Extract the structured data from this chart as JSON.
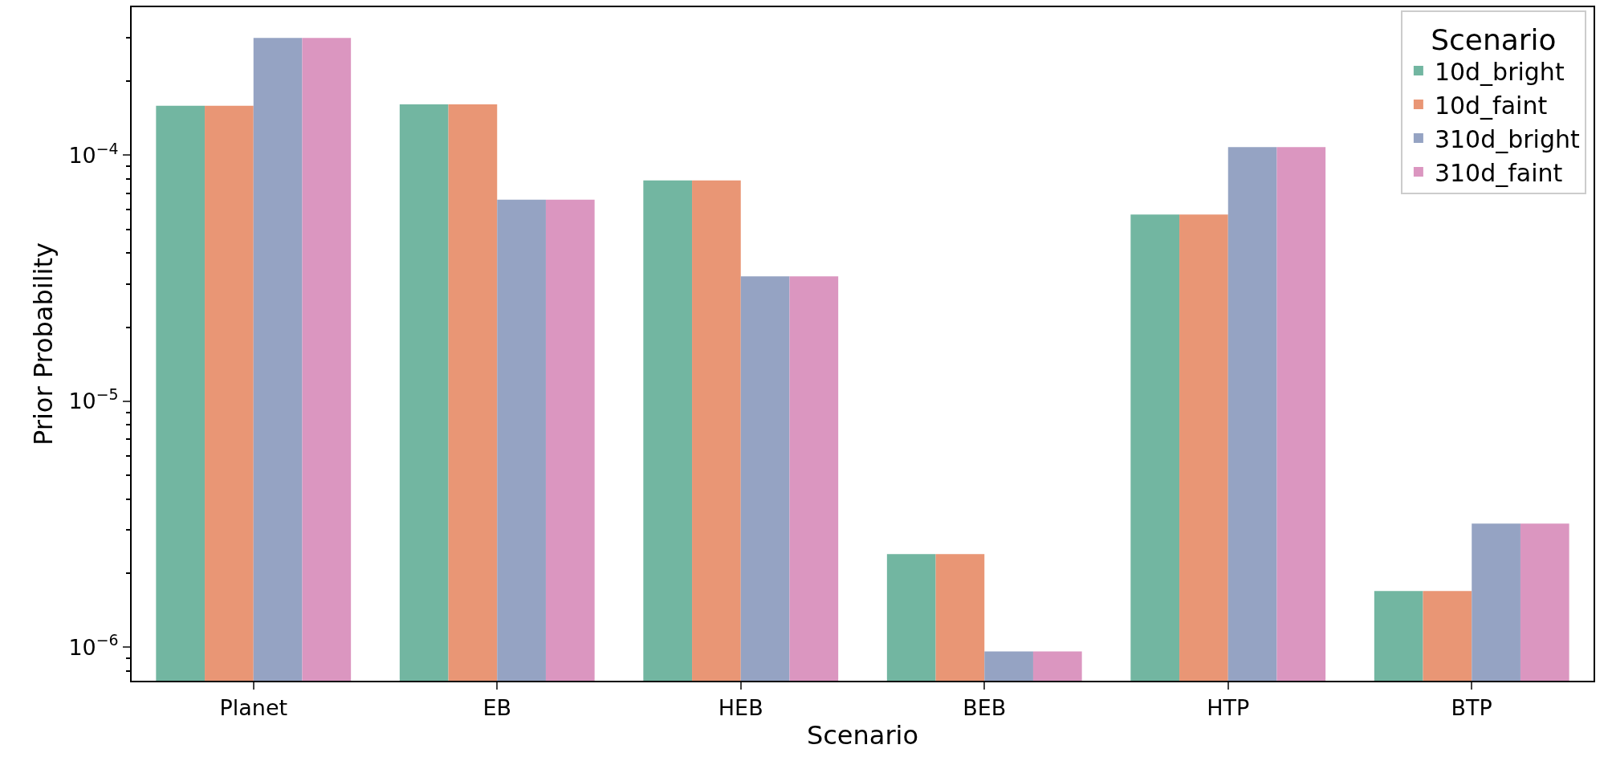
{
  "chart_data": {
    "type": "bar",
    "xlabel": "Scenario",
    "ylabel": "Prior Probability",
    "legend_title": "Scenario",
    "categories": [
      "Planet",
      "EB",
      "HEB",
      "BEB",
      "HTP",
      "BTP"
    ],
    "series": [
      {
        "name": "10d_bright",
        "color": "#72b6a1",
        "values": [
          0.000159,
          0.000161,
          7.9e-05,
          2.39e-06,
          5.74e-05,
          1.69e-06
        ]
      },
      {
        "name": "10d_faint",
        "color": "#e99675",
        "values": [
          0.000159,
          0.000161,
          7.9e-05,
          2.39e-06,
          5.74e-05,
          1.69e-06
        ]
      },
      {
        "name": "310d_bright",
        "color": "#95a3c3",
        "values": [
          0.0003,
          6.6e-05,
          3.22e-05,
          9.6e-07,
          0.000108,
          3.18e-06
        ]
      },
      {
        "name": "310d_faint",
        "color": "#db96c0",
        "values": [
          0.0003,
          6.6e-05,
          3.22e-05,
          9.6e-07,
          0.000108,
          3.18e-06
        ]
      }
    ],
    "log": "y",
    "ylim": [
      7.3e-07,
      0.0004
    ],
    "yticks": [
      {
        "value": 1e-06,
        "label": "10$^{−6}$"
      },
      {
        "value": 1e-05,
        "label": "10$^{−5}$"
      },
      {
        "value": 0.0001,
        "label": "10$^{−4}$"
      },
      {
        "value": 8e-07,
        "label": null
      },
      {
        "value": 9e-07,
        "label": null
      },
      {
        "value": 2e-06,
        "label": null
      },
      {
        "value": 3e-06,
        "label": null
      },
      {
        "value": 4e-06,
        "label": null
      },
      {
        "value": 5e-06,
        "label": null
      },
      {
        "value": 6e-06,
        "label": null
      },
      {
        "value": 7e-06,
        "label": null
      },
      {
        "value": 8e-06,
        "label": null
      },
      {
        "value": 9e-06,
        "label": null
      },
      {
        "value": 2e-05,
        "label": null
      },
      {
        "value": 3e-05,
        "label": null
      },
      {
        "value": 4e-05,
        "label": null
      },
      {
        "value": 5e-05,
        "label": null
      },
      {
        "value": 6e-05,
        "label": null
      },
      {
        "value": 7e-05,
        "label": null
      },
      {
        "value": 8e-05,
        "label": null
      },
      {
        "value": 9e-05,
        "label": null
      },
      {
        "value": 0.0002,
        "label": null
      },
      {
        "value": 0.0003,
        "label": null
      }
    ],
    "legend": "top right"
  }
}
